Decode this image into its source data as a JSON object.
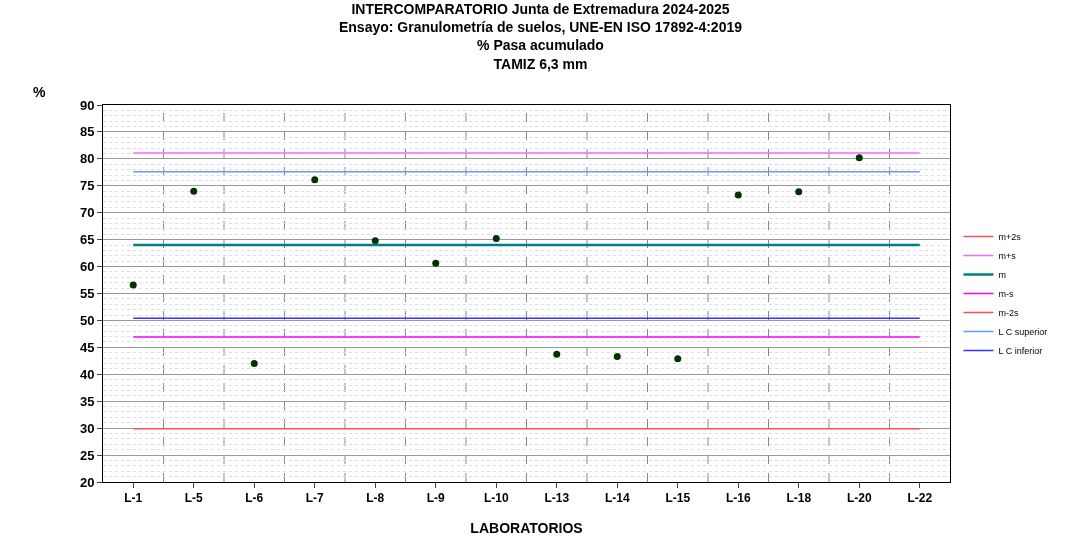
{
  "chart_data": {
    "type": "scatter",
    "title": "INTERCOMPARATORIO Junta de Extremadura 2024-2025\nEnsayo: Granulometría de suelos, UNE-EN ISO 17892-4:2019\n% Pasa acumulado\nTAMIZ 6,3 mm",
    "ylabel": "%",
    "xlabel": "LABORATORIOS",
    "categories": [
      "L-1",
      "L-5",
      "L-6",
      "L-7",
      "L-8",
      "L-9",
      "L-10",
      "L-13",
      "L-14",
      "L-15",
      "L-16",
      "L-18",
      "L-20",
      "L-22"
    ],
    "ylim": [
      20,
      90
    ],
    "yticks": [
      20,
      25,
      30,
      35,
      40,
      45,
      50,
      55,
      60,
      65,
      70,
      75,
      80,
      85,
      90
    ],
    "grid": true,
    "legend": "right",
    "marker": "circle",
    "series": [
      {
        "color": "#003300",
        "values": [
          56.6,
          74.0,
          42.0,
          76.1,
          64.8,
          60.6,
          65.2,
          43.7,
          43.3,
          42.9,
          73.3,
          73.9,
          80.2,
          null
        ]
      },
      {
        "type": "line",
        "marker": "none",
        "name": "m+2s",
        "color": "#ff5050",
        "values": [
          null,
          null,
          null,
          null,
          null,
          null,
          null,
          null,
          null,
          null,
          null,
          null,
          null,
          null
        ]
      },
      {
        "type": "line",
        "marker": "none",
        "name": "m+s",
        "color": "#ff66ff",
        "values": [
          81.1,
          81.1,
          81.1,
          81.1,
          81.1,
          81.1,
          81.1,
          81.1,
          81.1,
          81.1,
          81.1,
          81.1,
          81.1,
          81.1
        ]
      },
      {
        "type": "line",
        "marker": "none",
        "name": "m",
        "color": "#008080",
        "values": [
          64.0,
          64.0,
          64.0,
          64.0,
          64.0,
          64.0,
          64.0,
          64.0,
          64.0,
          64.0,
          64.0,
          64.0,
          64.0,
          64.0
        ]
      },
      {
        "type": "line",
        "marker": "none",
        "name": "m-s",
        "color": "#ff00ff",
        "values": [
          46.9,
          46.9,
          46.9,
          46.9,
          46.9,
          46.9,
          46.9,
          46.9,
          46.9,
          46.9,
          46.9,
          46.9,
          46.9,
          46.9
        ]
      },
      {
        "type": "line",
        "marker": "none",
        "name": "m-2s",
        "color": "#ff5050",
        "values": [
          29.9,
          29.9,
          29.9,
          29.9,
          29.9,
          29.9,
          29.9,
          29.9,
          29.9,
          29.9,
          29.9,
          29.9,
          29.9,
          29.9
        ]
      },
      {
        "type": "line",
        "marker": "none",
        "name": "L C superior",
        "color": "#6699ff",
        "values": [
          77.6,
          77.6,
          77.6,
          77.6,
          77.6,
          77.6,
          77.6,
          77.6,
          77.6,
          77.6,
          77.6,
          77.6,
          77.6,
          77.6
        ]
      },
      {
        "type": "line",
        "marker": "none",
        "name": "L C inferior",
        "color": "#3333ff",
        "values": [
          50.4,
          50.4,
          50.4,
          50.4,
          50.4,
          50.4,
          50.4,
          50.4,
          50.4,
          50.4,
          50.4,
          50.4,
          50.4,
          50.4
        ]
      }
    ]
  }
}
